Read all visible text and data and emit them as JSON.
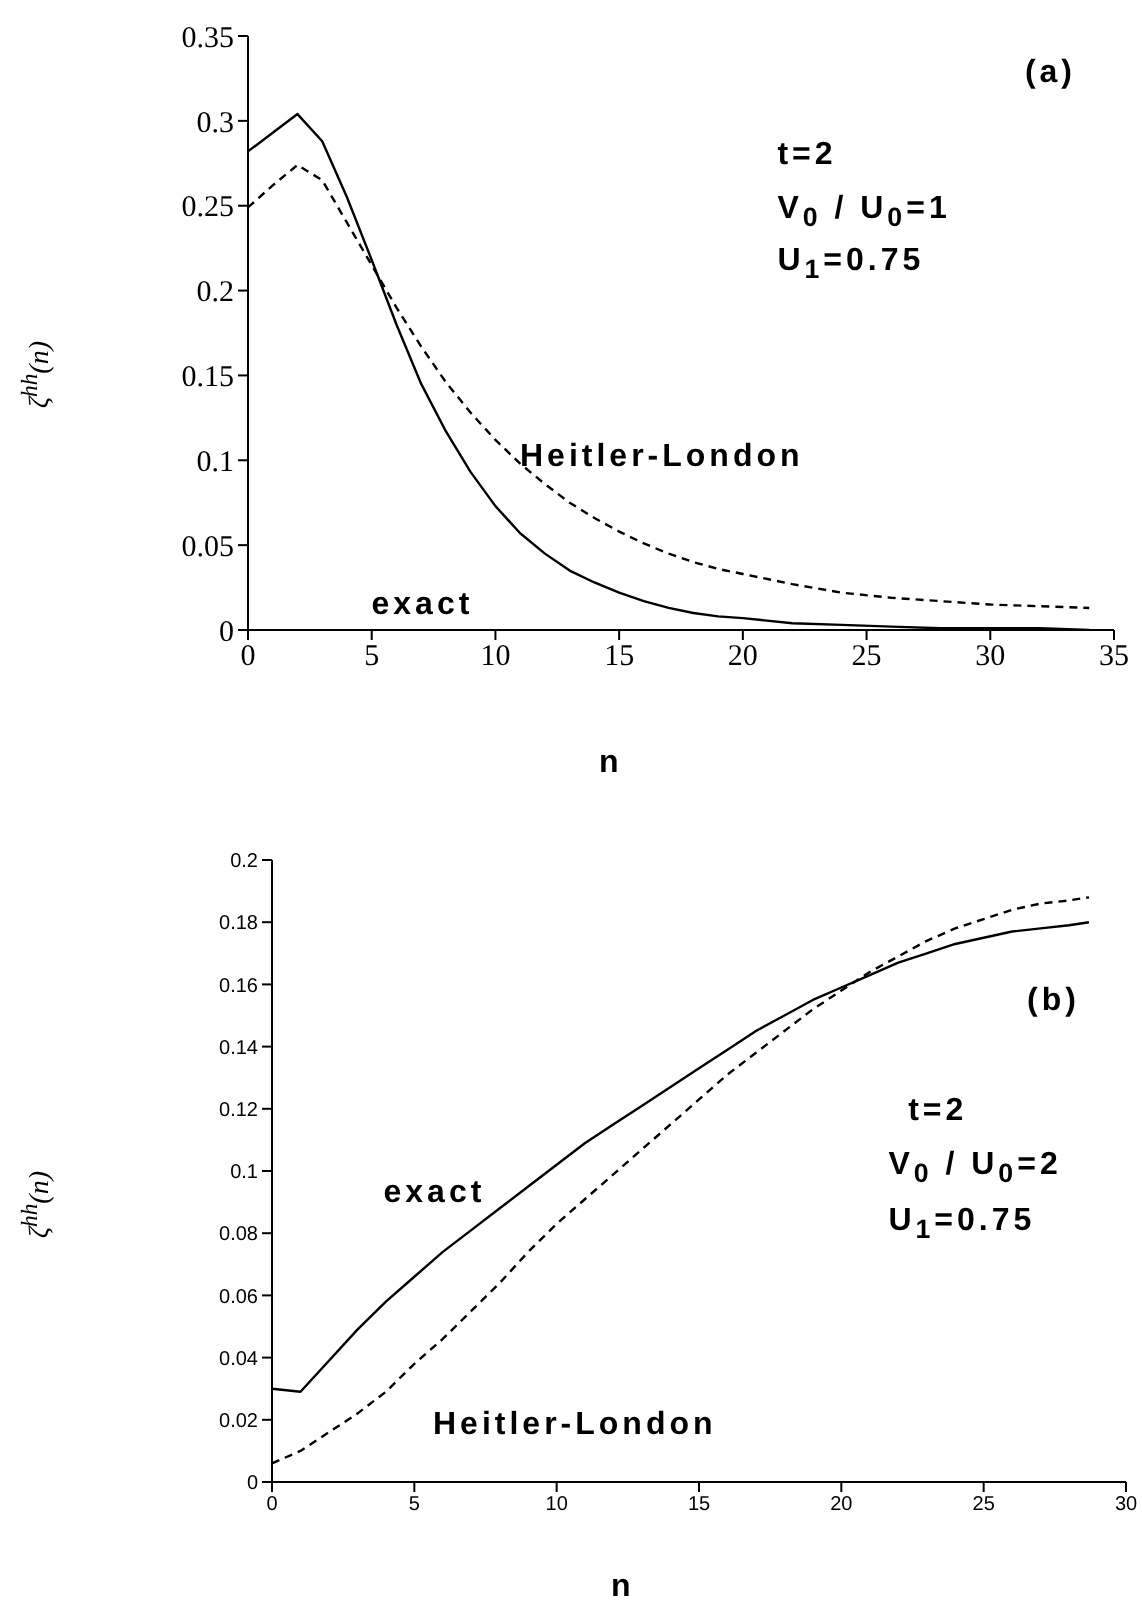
{
  "chart_data": [
    {
      "type": "line",
      "xlabel": "n",
      "ylabel": "ζ$^{hh}$(n)",
      "xlim": [
        0,
        35
      ],
      "xticks": [
        0,
        5,
        10,
        15,
        20,
        25,
        30,
        35
      ],
      "ylim": [
        0,
        0.35
      ],
      "yticks": [
        0,
        0.05,
        0.1,
        0.15,
        0.2,
        0.25,
        0.3,
        0.35
      ],
      "annotations": [
        "(a)",
        "t=2",
        "V$_{0}$ / U$_{0}$=1",
        "U$_{1}$=0.75"
      ],
      "series": [
        {
          "name": "exact",
          "color": "#000000",
          "line_style": "solid",
          "x": [
            0,
            1,
            2,
            3,
            4,
            5,
            6,
            7,
            8,
            9,
            10,
            11,
            12,
            13,
            14,
            15,
            16,
            17,
            18,
            19,
            20,
            22,
            24,
            26,
            28,
            30,
            32,
            34
          ],
          "values": [
            0.282,
            0.293,
            0.304,
            0.288,
            0.255,
            0.218,
            0.18,
            0.145,
            0.117,
            0.093,
            0.073,
            0.057,
            0.045,
            0.035,
            0.028,
            0.022,
            0.017,
            0.013,
            0.01,
            0.008,
            0.007,
            0.004,
            0.003,
            0.002,
            0.001,
            0.001,
            0.001,
            0
          ]
        },
        {
          "name": "Heitler-London",
          "color": "#000000",
          "line_style": "dashed",
          "x": [
            0,
            1,
            2,
            3,
            4,
            5,
            6,
            7,
            8,
            9,
            10,
            11,
            12,
            13,
            14,
            15,
            16,
            17,
            18,
            19,
            20,
            22,
            24,
            26,
            28,
            30,
            32,
            34
          ],
          "values": [
            0.249,
            0.262,
            0.274,
            0.265,
            0.24,
            0.215,
            0.19,
            0.167,
            0.146,
            0.128,
            0.112,
            0.098,
            0.086,
            0.075,
            0.066,
            0.058,
            0.051,
            0.045,
            0.04,
            0.036,
            0.033,
            0.027,
            0.022,
            0.019,
            0.017,
            0.015,
            0.014,
            0.013
          ]
        }
      ]
    },
    {
      "type": "line",
      "xlabel": "n",
      "ylabel": "ζ$^{hh}$(n)",
      "xlim": [
        0,
        30
      ],
      "xticks": [
        0,
        5,
        10,
        15,
        20,
        25,
        30
      ],
      "ylim": [
        0,
        0.2
      ],
      "yticks": [
        0,
        0.02,
        0.04,
        0.06,
        0.08,
        0.1,
        0.12,
        0.14,
        0.16,
        0.18,
        0.2
      ],
      "annotations": [
        "(b)",
        "t=2",
        "V$_{0}$ / U$_{0}$=2",
        "U$_{1}$=0.75"
      ],
      "series": [
        {
          "name": "exact",
          "color": "#000000",
          "line_style": "solid",
          "x": [
            0,
            1,
            2,
            3,
            4,
            5,
            6,
            7,
            8,
            9,
            10,
            11,
            12,
            13,
            14,
            15,
            16,
            17,
            18,
            19,
            20,
            21,
            22,
            23,
            24,
            25,
            26,
            27,
            28,
            28.7
          ],
          "values": [
            0.03,
            0.029,
            0.039,
            0.049,
            0.058,
            0.066,
            0.074,
            0.081,
            0.088,
            0.095,
            0.102,
            0.109,
            0.115,
            0.121,
            0.127,
            0.133,
            0.139,
            0.145,
            0.15,
            0.155,
            0.159,
            0.163,
            0.167,
            0.17,
            0.173,
            0.175,
            0.177,
            0.178,
            0.179,
            0.18
          ]
        },
        {
          "name": "Heitler-London",
          "color": "#000000",
          "line_style": "dashed",
          "x": [
            0,
            1,
            2,
            3,
            4,
            5,
            6,
            7,
            8,
            9,
            10,
            11,
            12,
            13,
            14,
            15,
            16,
            17,
            18,
            19,
            20,
            21,
            22,
            23,
            24,
            25,
            26,
            27,
            28,
            28.7
          ],
          "values": [
            0.006,
            0.01,
            0.016,
            0.022,
            0.029,
            0.038,
            0.046,
            0.055,
            0.064,
            0.074,
            0.083,
            0.091,
            0.099,
            0.107,
            0.115,
            0.123,
            0.131,
            0.138,
            0.145,
            0.152,
            0.158,
            0.164,
            0.169,
            0.174,
            0.178,
            0.181,
            0.184,
            0.186,
            0.187,
            0.188
          ]
        }
      ]
    }
  ]
}
